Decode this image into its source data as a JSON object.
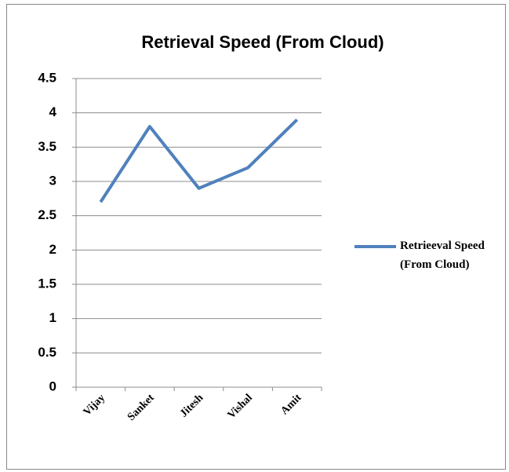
{
  "chart_data": {
    "type": "line",
    "title": "Retrieval Speed (From Cloud)",
    "categories": [
      "Vijay",
      "Sanket",
      "Jitesh",
      "Vishal",
      "Amit"
    ],
    "series": [
      {
        "name": "Retrieeval Speed (From Cloud)",
        "color": "#4f81bd",
        "values": [
          2.7,
          3.8,
          2.9,
          3.2,
          3.9
        ]
      }
    ],
    "ylim": [
      0,
      4.5
    ],
    "yticks": [
      0,
      0.5,
      1,
      1.5,
      2,
      2.5,
      3,
      3.5,
      4,
      4.5
    ],
    "grid": true,
    "legend": "right"
  }
}
